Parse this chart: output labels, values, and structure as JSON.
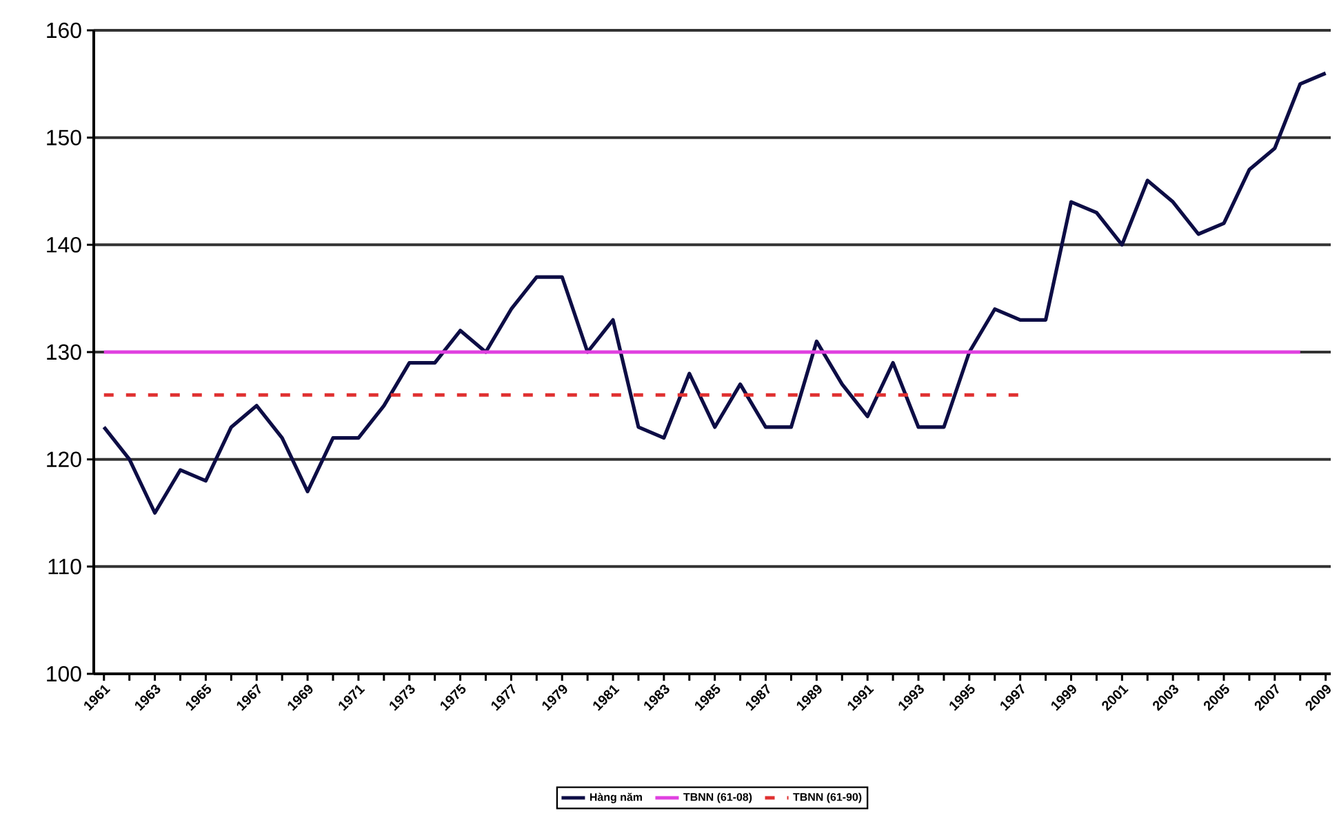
{
  "chart_data": {
    "type": "line",
    "xlim": [
      1960.6,
      2009.2
    ],
    "ylim": [
      100,
      160
    ],
    "yticks": [
      100,
      110,
      120,
      130,
      140,
      150,
      160
    ],
    "xticks": [
      1961,
      {
        "value": 1962,
        "label": null
      },
      1963,
      {
        "value": 1964,
        "label": null
      },
      1965,
      {
        "value": 1966,
        "label": null
      },
      1967,
      {
        "value": 1968,
        "label": null
      },
      1969,
      {
        "value": 1970,
        "label": null
      },
      1971,
      {
        "value": 1972,
        "label": null
      },
      1973,
      {
        "value": 1974,
        "label": null
      },
      1975,
      {
        "value": 1976,
        "label": null
      },
      1977,
      {
        "value": 1978,
        "label": null
      },
      1979,
      {
        "value": 1980,
        "label": null
      },
      1981,
      {
        "value": 1982,
        "label": null
      },
      1983,
      {
        "value": 1984,
        "label": null
      },
      1985,
      {
        "value": 1986,
        "label": null
      },
      1987,
      {
        "value": 1988,
        "label": null
      },
      1989,
      {
        "value": 1990,
        "label": null
      },
      1991,
      {
        "value": 1992,
        "label": null
      },
      1993,
      {
        "value": 1994,
        "label": null
      },
      1995,
      {
        "value": 1996,
        "label": null
      },
      1997,
      {
        "value": 1998,
        "label": null
      },
      1999,
      {
        "value": 2000,
        "label": null
      },
      2001,
      {
        "value": 2002,
        "label": null
      },
      2003,
      {
        "value": 2004,
        "label": null
      },
      2005,
      {
        "value": 2006,
        "label": null
      },
      2007,
      {
        "value": 2008,
        "label": null
      },
      2009
    ],
    "grid": "y",
    "legend": "bottom",
    "series": [
      {
        "name": "Hàng năm",
        "color": "#0d0d45",
        "line_style": "solid",
        "x": [
          1961,
          1962,
          1963,
          1964,
          1965,
          1966,
          1967,
          1968,
          1969,
          1970,
          1971,
          1972,
          1973,
          1974,
          1975,
          1976,
          1977,
          1978,
          1979,
          1980,
          1981,
          1982,
          1983,
          1984,
          1985,
          1986,
          1987,
          1988,
          1989,
          1990,
          1991,
          1992,
          1993,
          1994,
          1995,
          1996,
          1997,
          1998,
          1999,
          2000,
          2001,
          2002,
          2003,
          2004,
          2005,
          2006,
          2007,
          2008,
          2009
        ],
        "values": [
          123,
          120,
          115,
          119,
          118,
          123,
          125,
          122,
          117,
          122,
          122,
          125,
          129,
          129,
          132,
          130,
          134,
          137,
          137,
          130,
          133,
          123,
          122,
          128,
          123,
          127,
          123,
          123,
          131,
          127,
          124,
          129,
          123,
          123,
          130,
          134,
          133,
          133,
          144,
          143,
          140,
          146,
          144,
          141,
          142,
          147,
          149,
          155,
          156
        ]
      },
      {
        "name": "TBNN (61-08)",
        "color": "#e040e0",
        "line_style": "solid",
        "x": [
          1961,
          2008
        ],
        "values": [
          130,
          130
        ]
      },
      {
        "name": "TBNN (61-90)",
        "color": "#e03030",
        "line_style": "dashed",
        "x": [
          1961,
          1997
        ],
        "values": [
          126,
          126
        ]
      }
    ]
  }
}
